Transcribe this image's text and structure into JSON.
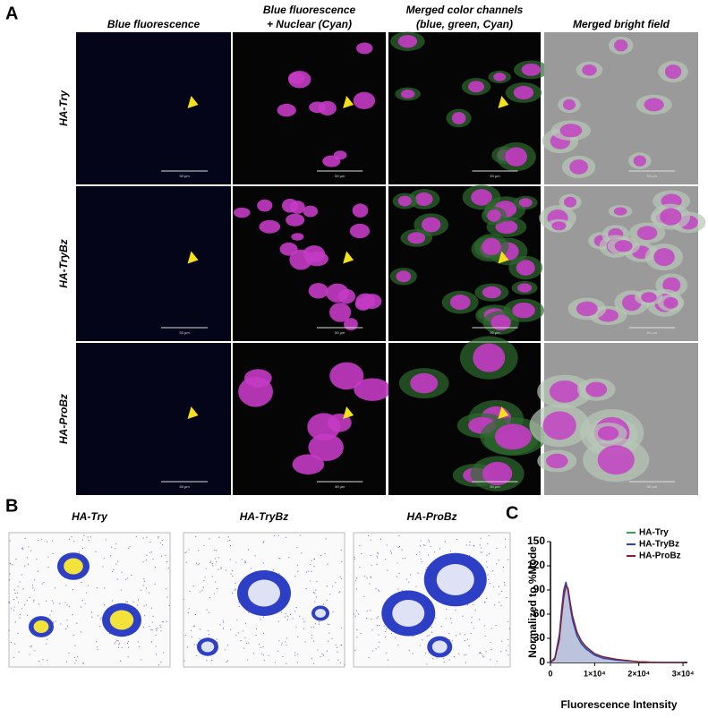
{
  "panel_a": {
    "label": "A",
    "columns": [
      [
        "Blue fluorescence"
      ],
      [
        "Blue fluorescence",
        "+ Nuclear (Cyan)"
      ],
      [
        "Merged color channels",
        "(blue, green, Cyan)"
      ],
      [
        "Merged bright field"
      ]
    ],
    "rows": [
      "HA-Try",
      "HA-TryBz",
      "HA-ProBz"
    ],
    "scale_bar": "50 µm"
  },
  "panel_b": {
    "label": "B",
    "titles": [
      "HA-Try",
      "HA-TryBz",
      "HA-ProBz"
    ]
  },
  "panel_c": {
    "label": "C"
  },
  "chart_data": {
    "type": "line",
    "ylabel": "Normalized to %Mode",
    "xlabel": "Fluorescence Intensity",
    "x": [
      0,
      1000,
      2000,
      2500,
      3000,
      3500,
      4000,
      4500,
      5000,
      6000,
      7000,
      8000,
      10000,
      12000,
      15000,
      20000,
      25000,
      30000
    ],
    "series": [
      {
        "name": "HA-Try",
        "color": "#3c9a5a",
        "values": [
          0,
          5,
          30,
          60,
          85,
          98,
          90,
          70,
          55,
          35,
          25,
          18,
          10,
          6,
          3,
          1,
          0,
          0
        ]
      },
      {
        "name": "HA-TryBz",
        "color": "#2f3fc0",
        "values": [
          0,
          6,
          35,
          65,
          90,
          100,
          88,
          68,
          52,
          33,
          23,
          17,
          9,
          5,
          3,
          1,
          0,
          0
        ]
      },
      {
        "name": "HA-ProBz",
        "color": "#8b1a2a",
        "values": [
          0,
          4,
          28,
          55,
          80,
          95,
          92,
          74,
          58,
          38,
          27,
          20,
          11,
          7,
          4,
          1,
          0,
          0
        ]
      }
    ],
    "area_color": "#bcc3dc",
    "xlim": [
      0,
      31000
    ],
    "ylim": [
      0,
      150
    ],
    "yticks": [
      0,
      30,
      60,
      90,
      120,
      150
    ],
    "xticks": [
      0,
      {
        "value": 10000,
        "label": "1×10⁴"
      },
      {
        "value": 20000,
        "label": "2×10⁴"
      },
      {
        "value": 30000,
        "label": "3×10⁴"
      }
    ],
    "legend": "top-right"
  }
}
